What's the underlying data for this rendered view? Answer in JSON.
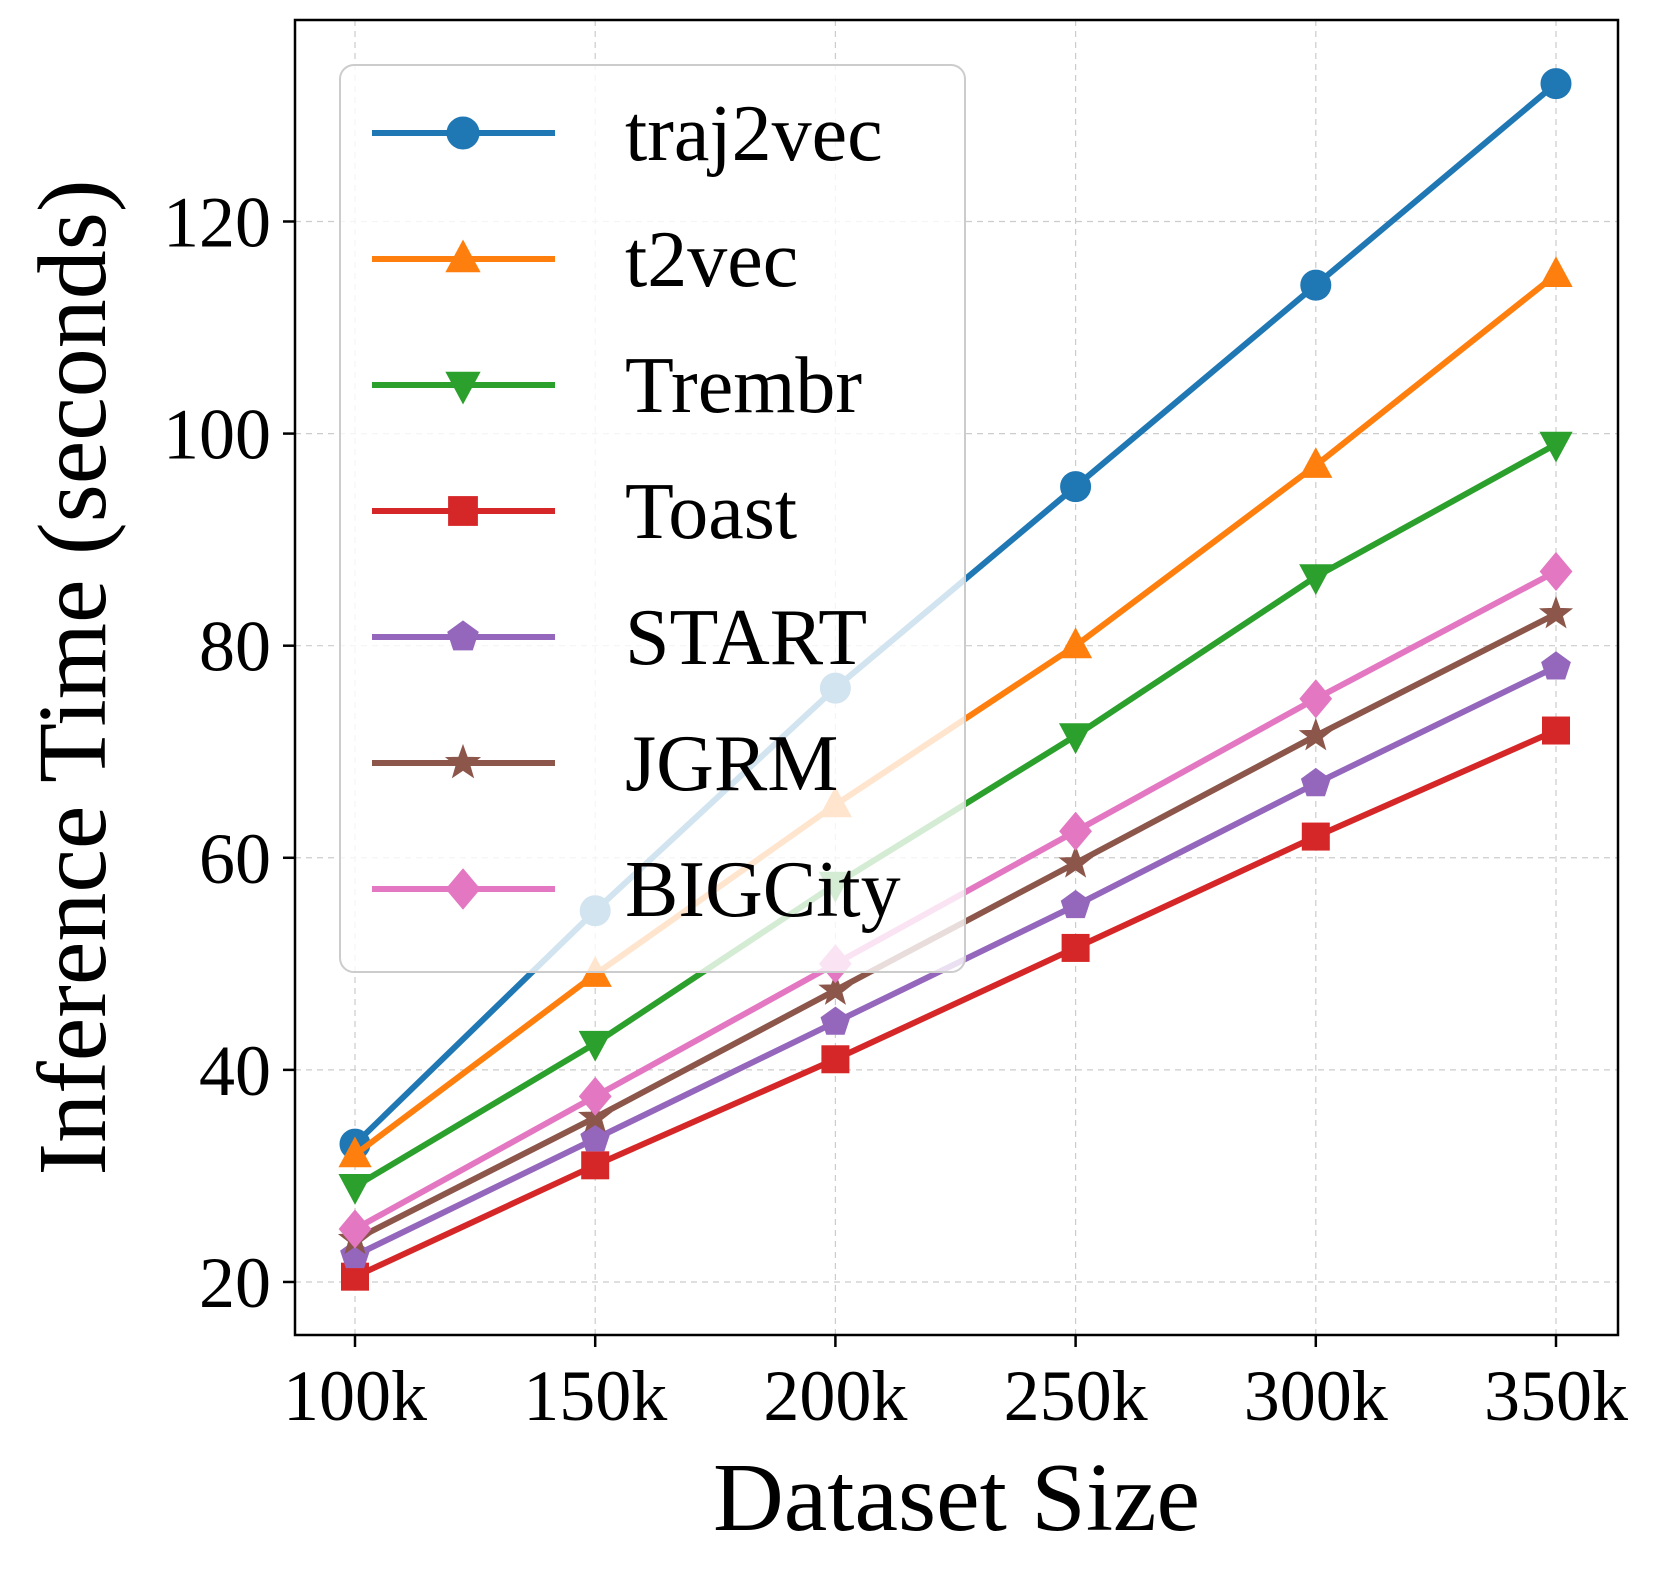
{
  "chart_data": {
    "type": "line",
    "title": "",
    "xlabel": "Dataset Size",
    "ylabel": "Inference Time (seconds)",
    "categories": [
      "100k",
      "150k",
      "200k",
      "250k",
      "300k",
      "350k"
    ],
    "y_ticks": [
      20,
      40,
      60,
      80,
      100,
      120
    ],
    "ylim": [
      15,
      139
    ],
    "grid": true,
    "legend_position": "upper-left",
    "series": [
      {
        "name": "traj2vec",
        "color": "#1f77b4",
        "marker": "circle",
        "values": [
          33,
          55,
          76,
          95,
          114,
          133
        ]
      },
      {
        "name": "t2vec",
        "color": "#ff7f0e",
        "marker": "triangle-up",
        "values": [
          32,
          49,
          65,
          80,
          97,
          115
        ]
      },
      {
        "name": "Trembr",
        "color": "#2ca02c",
        "marker": "triangle-down",
        "values": [
          29,
          42.5,
          57.5,
          71.5,
          86.5,
          99
        ]
      },
      {
        "name": "Toast",
        "color": "#d62728",
        "marker": "square",
        "values": [
          20.5,
          31,
          41,
          51.5,
          62,
          72
        ]
      },
      {
        "name": "START",
        "color": "#9467bd",
        "marker": "pentagon",
        "values": [
          22.5,
          33.5,
          44.5,
          55.5,
          67,
          78
        ]
      },
      {
        "name": "JGRM",
        "color": "#8c564b",
        "marker": "star",
        "values": [
          24,
          35.5,
          47.5,
          59.5,
          71.5,
          83
        ]
      },
      {
        "name": "BIGCity",
        "color": "#e377c2",
        "marker": "diamond",
        "values": [
          25,
          37.5,
          50,
          62.5,
          75,
          87
        ]
      }
    ]
  }
}
